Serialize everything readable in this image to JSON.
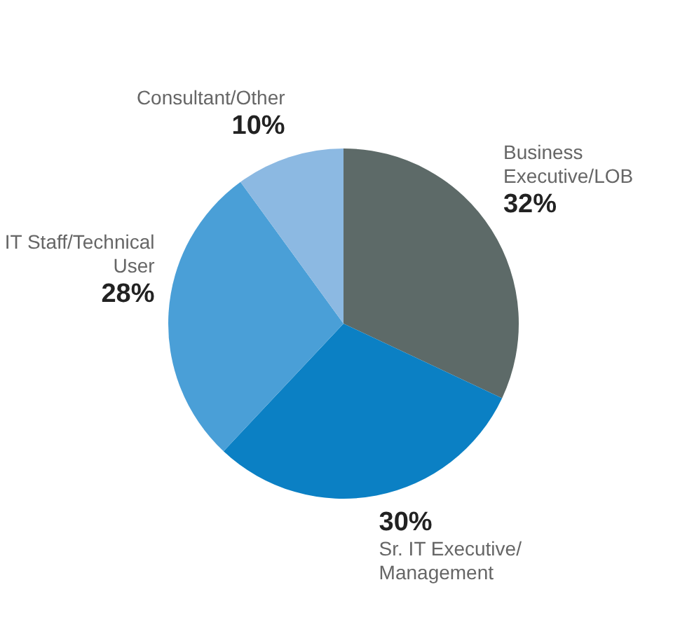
{
  "chart_data": {
    "type": "pie",
    "categories": [
      "Business Executive/LOB",
      "Sr. IT Executive/Management",
      "IT Staff/Technical User",
      "Consultant/Other"
    ],
    "values": [
      32,
      30,
      28,
      10
    ],
    "value_labels": [
      "32%",
      "30%",
      "28%",
      "10%"
    ],
    "colors": [
      "#5d6a68",
      "#0b80c4",
      "#4a9fd7",
      "#8cb9e2"
    ],
    "legend": false
  }
}
